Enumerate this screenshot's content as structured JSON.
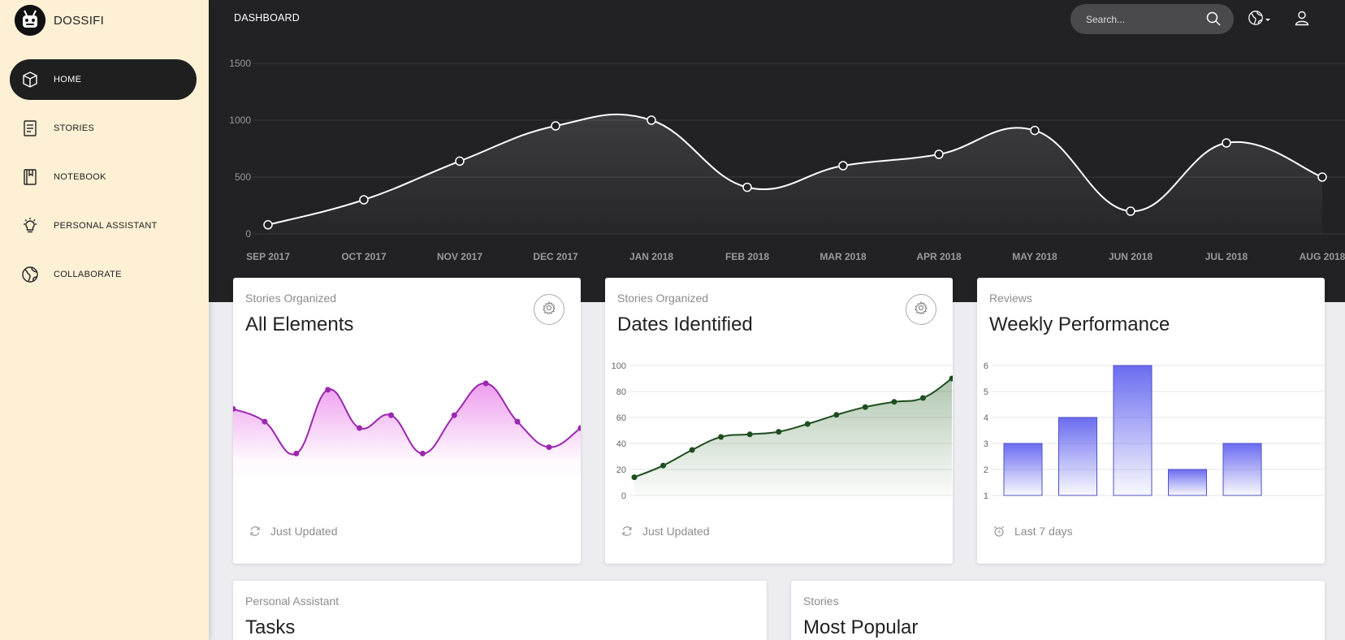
{
  "brand": {
    "name": "DOSSIFI"
  },
  "sidebar": {
    "items": [
      {
        "label": "HOME",
        "icon": "cube-icon",
        "active": true
      },
      {
        "label": "STORIES",
        "icon": "document-icon",
        "active": false
      },
      {
        "label": "NOTEBOOK",
        "icon": "notebook-icon",
        "active": false
      },
      {
        "label": "PERSONAL ASSISTANT",
        "icon": "lightbulb-icon",
        "active": false
      },
      {
        "label": "COLLABORATE",
        "icon": "globe-icon",
        "active": false
      }
    ]
  },
  "header": {
    "title": "DASHBOARD",
    "search_placeholder": "Search...",
    "icons": [
      "search-icon",
      "globe-icon",
      "user-icon"
    ]
  },
  "colors": {
    "sidebar_bg": "#fdf0d5",
    "hero_bg": "#222224",
    "elements_line": "#9c27b0",
    "dates_line": "#1e4d1e",
    "reviews_bar": "#6b6cf0"
  },
  "chart_data": [
    {
      "type": "area",
      "categories": [
        "SEP 2017",
        "OCT 2017",
        "NOV 2017",
        "DEC 2017",
        "JAN 2018",
        "FEB 2018",
        "MAR 2018",
        "APR 2018",
        "MAY 2018",
        "JUN 2018",
        "JUL 2018",
        "AUG 2018"
      ],
      "values": [
        80,
        300,
        640,
        950,
        1000,
        410,
        600,
        700,
        910,
        200,
        800,
        500
      ],
      "ylim": [
        0,
        1500
      ],
      "yticks": [
        "0",
        "500",
        "1000",
        "1500"
      ],
      "grid": true
    },
    {
      "type": "area",
      "title": "All Elements",
      "category": "Stories Organized",
      "values": [
        12,
        10,
        5,
        15,
        9,
        11,
        5,
        11,
        16,
        10,
        6,
        9
      ],
      "footer": "Just Updated",
      "footer_icon": "refresh-icon"
    },
    {
      "type": "area",
      "title": "Dates Identified",
      "category": "Stories Organized",
      "values": [
        14,
        23,
        35,
        45,
        47,
        49,
        55,
        62,
        68,
        72,
        75,
        90
      ],
      "ylim": [
        0,
        100
      ],
      "yticks": [
        "0",
        "20",
        "40",
        "60",
        "80",
        "100"
      ],
      "grid": true,
      "footer": "Just Updated",
      "footer_icon": "refresh-icon"
    },
    {
      "type": "bar",
      "title": "Weekly Performance",
      "category": "Reviews",
      "values": [
        3,
        4,
        6,
        2,
        3
      ],
      "ylim": [
        1,
        6
      ],
      "yticks": [
        "1",
        "2",
        "3",
        "4",
        "5",
        "6"
      ],
      "grid": true,
      "footer": "Last 7 days",
      "footer_icon": "alarm-clock-icon"
    }
  ],
  "lower_cards": [
    {
      "category": "Personal Assistant",
      "title": "Tasks"
    },
    {
      "category": "Stories",
      "title": "Most Popular"
    }
  ]
}
